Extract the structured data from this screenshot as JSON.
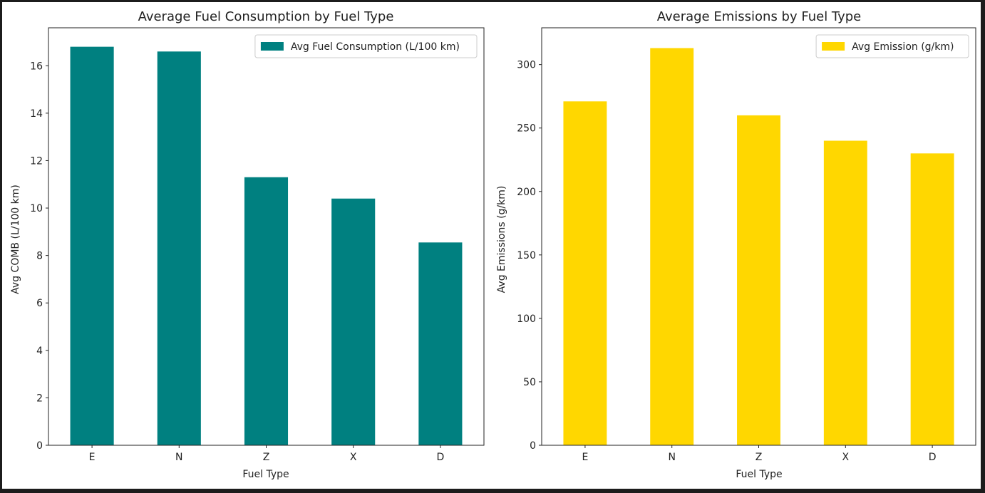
{
  "chart_data": [
    {
      "type": "bar",
      "title": "Average Fuel Consumption by Fuel Type",
      "xlabel": "Fuel Type",
      "ylabel": "Avg COMB (L/100 km)",
      "categories": [
        "E",
        "N",
        "Z",
        "X",
        "D"
      ],
      "series": [
        {
          "name": "Avg Fuel Consumption (L/100 km)",
          "values": [
            16.8,
            16.6,
            11.3,
            10.4,
            8.55
          ],
          "color": "#008080"
        }
      ],
      "ylim": [
        0,
        17.6
      ],
      "yticks": [
        0,
        2,
        4,
        6,
        8,
        10,
        12,
        14,
        16
      ],
      "grid": false,
      "legend_position": "top-right"
    },
    {
      "type": "bar",
      "title": "Average Emissions by Fuel Type",
      "xlabel": "Fuel Type",
      "ylabel": "Avg Emissions (g/km)",
      "categories": [
        "E",
        "N",
        "Z",
        "X",
        "D"
      ],
      "series": [
        {
          "name": "Avg Emission (g/km)",
          "values": [
            271,
            313,
            260,
            240,
            230
          ],
          "color": "#FFD700"
        }
      ],
      "ylim": [
        0,
        329
      ],
      "yticks": [
        0,
        50,
        100,
        150,
        200,
        250,
        300
      ],
      "grid": false,
      "legend_position": "top-right"
    }
  ]
}
